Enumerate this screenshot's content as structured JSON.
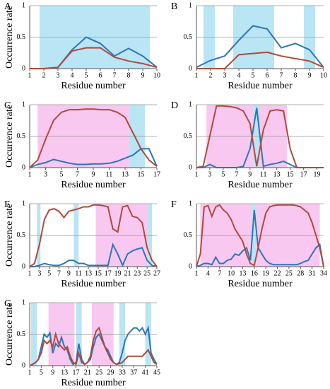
{
  "chart_data": [
    {
      "type": "line",
      "panel": "A",
      "ylabel": "Occurrence rate",
      "xlabel": "Residue number",
      "x": [
        1,
        2,
        3,
        4,
        5,
        6,
        7,
        8,
        9,
        10
      ],
      "xlim": [
        1,
        10
      ],
      "xticks": [
        1,
        2,
        3,
        4,
        5,
        6,
        7,
        8,
        9,
        10
      ],
      "ylim": [
        0,
        1
      ],
      "yticks": [
        0,
        0.5,
        1
      ],
      "grid": true,
      "regions": [
        {
          "from": 1.7,
          "to": 9.5,
          "color": "#b9e5f5"
        }
      ],
      "series": [
        {
          "color": "#2e75b6",
          "values": [
            0,
            0,
            0.02,
            0.3,
            0.5,
            0.4,
            0.2,
            0.32,
            0.2,
            0.02
          ]
        },
        {
          "color": "#b0493a",
          "values": [
            0,
            0,
            0.02,
            0.28,
            0.33,
            0.33,
            0.18,
            0.12,
            0.08,
            0.02
          ]
        }
      ]
    },
    {
      "type": "line",
      "panel": "B",
      "xlabel": "Residue number",
      "x": [
        1,
        2,
        3,
        4,
        5,
        6,
        7,
        8,
        9,
        10
      ],
      "xlim": [
        1,
        10
      ],
      "xticks": [
        1,
        2,
        3,
        4,
        5,
        6,
        7,
        8,
        9,
        10
      ],
      "ylim": [
        0,
        1
      ],
      "yticks": [
        0,
        0.5,
        1
      ],
      "grid": true,
      "regions": [
        {
          "from": 1.5,
          "to": 2.3,
          "color": "#b9e5f5"
        },
        {
          "from": 3.6,
          "to": 6.5,
          "color": "#b9e5f5"
        },
        {
          "from": 8.6,
          "to": 9.4,
          "color": "#b9e5f5"
        }
      ],
      "series": [
        {
          "color": "#2e75b6",
          "values": [
            0.02,
            0.13,
            0.2,
            0.45,
            0.68,
            0.63,
            0.33,
            0.4,
            0.3,
            0.02
          ]
        },
        {
          "color": "#b0493a",
          "values": [
            0,
            0,
            0,
            0.22,
            0.24,
            0.26,
            0.2,
            0.16,
            0.12,
            0.02
          ]
        }
      ]
    },
    {
      "type": "line",
      "panel": "C",
      "ylabel": "Occurrence rate",
      "xlabel": "Residue number",
      "x": [
        1,
        2,
        3,
        4,
        5,
        6,
        7,
        8,
        9,
        10,
        11,
        12,
        13,
        14,
        15,
        16,
        17
      ],
      "xlim": [
        1,
        17
      ],
      "xticks": [
        1,
        3,
        5,
        7,
        9,
        11,
        13,
        15,
        17
      ],
      "ylim": [
        0,
        1
      ],
      "yticks": [
        0,
        0.5,
        1
      ],
      "grid": true,
      "regions": [
        {
          "from": 2,
          "to": 13.5,
          "color": "#f8c8f1"
        },
        {
          "from": 13.5,
          "to": 15.5,
          "color": "#b9e5f5"
        }
      ],
      "series": [
        {
          "color": "#2e75b6",
          "values": [
            0,
            0.05,
            0.08,
            0.13,
            0.1,
            0.07,
            0.05,
            0.05,
            0.06,
            0.06,
            0.07,
            0.1,
            0.15,
            0.2,
            0.3,
            0.3,
            0.02
          ]
        },
        {
          "color": "#b0493a",
          "values": [
            0,
            0.12,
            0.45,
            0.75,
            0.88,
            0.92,
            0.92,
            0.93,
            0.93,
            0.92,
            0.92,
            0.88,
            0.8,
            0.55,
            0.3,
            0.12,
            0.02
          ]
        }
      ]
    },
    {
      "type": "line",
      "panel": "D",
      "xlabel": "Residue number",
      "x": [
        1,
        2,
        3,
        4,
        5,
        6,
        7,
        8,
        9,
        10,
        11,
        12,
        13,
        14,
        15,
        16,
        17,
        18,
        19,
        20
      ],
      "xlim": [
        1,
        20
      ],
      "xticks": [
        1,
        3,
        5,
        7,
        9,
        11,
        13,
        15,
        17,
        19
      ],
      "ylim": [
        0,
        1
      ],
      "yticks": [
        0,
        0.5,
        1
      ],
      "grid": true,
      "regions": [
        {
          "from": 2.5,
          "to": 9.5,
          "color": "#f8c8f1"
        },
        {
          "from": 9.5,
          "to": 10.5,
          "color": "#b9e5f5"
        },
        {
          "from": 10.5,
          "to": 14.5,
          "color": "#f8c8f1"
        }
      ],
      "series": [
        {
          "color": "#2e75b6",
          "values": [
            0,
            0,
            0.05,
            0,
            0,
            0,
            0,
            0.02,
            0.3,
            0.95,
            0.02,
            0.05,
            0.07,
            0.1,
            0.05,
            0,
            0,
            0,
            0,
            0
          ]
        },
        {
          "color": "#b0493a",
          "values": [
            0,
            0.02,
            0.5,
            0.98,
            0.98,
            0.97,
            0.95,
            0.9,
            0.7,
            0.02,
            0.6,
            0.9,
            0.92,
            0.9,
            0.3,
            0,
            0,
            0,
            0,
            0
          ]
        }
      ]
    },
    {
      "type": "line",
      "panel": "E",
      "ylabel": "Occurrence rate",
      "xlabel": "Residue number",
      "x": [
        1,
        2,
        3,
        4,
        5,
        6,
        7,
        8,
        9,
        10,
        11,
        12,
        13,
        14,
        15,
        16,
        17,
        18,
        19,
        20,
        21,
        22,
        23,
        24,
        25,
        26,
        27
      ],
      "xlim": [
        1,
        27
      ],
      "xticks": [
        1,
        3,
        5,
        7,
        9,
        11,
        13,
        15,
        17,
        19,
        21,
        23,
        25,
        27
      ],
      "ylim": [
        0,
        1
      ],
      "yticks": [
        0,
        0.5,
        1
      ],
      "grid": true,
      "regions": [
        {
          "from": 2.5,
          "to": 3.2,
          "color": "#b9e5f5"
        },
        {
          "from": 10,
          "to": 11,
          "color": "#b9e5f5"
        },
        {
          "from": 14.5,
          "to": 25,
          "color": "#f8c8f1"
        },
        {
          "from": 25,
          "to": 26,
          "color": "#b9e5f5"
        }
      ],
      "series": [
        {
          "color": "#2e75b6",
          "values": [
            0,
            0,
            0.02,
            0.05,
            0.03,
            0.02,
            0.02,
            0.05,
            0.1,
            0.1,
            0.05,
            0.05,
            0.02,
            0.02,
            0.02,
            0.02,
            0.02,
            0.35,
            0.2,
            0.02,
            0.2,
            0.25,
            0.28,
            0.3,
            0.1,
            0.02,
            0
          ]
        },
        {
          "color": "#b0493a",
          "values": [
            0,
            0.05,
            0.35,
            0.75,
            0.9,
            0.92,
            0.88,
            0.78,
            0.88,
            0.9,
            0.92,
            0.95,
            0.95,
            0.98,
            0.98,
            0.97,
            0.95,
            0.6,
            0.55,
            0.95,
            0.97,
            0.8,
            0.78,
            0.7,
            0.3,
            0.1,
            0
          ]
        }
      ]
    },
    {
      "type": "line",
      "panel": "F",
      "xlabel": "Residue number",
      "x": [
        1,
        2,
        3,
        4,
        5,
        6,
        7,
        8,
        9,
        10,
        11,
        12,
        13,
        14,
        15,
        16,
        17,
        18,
        19,
        20,
        21,
        22,
        23,
        24,
        25,
        26,
        27,
        28,
        29,
        30,
        31,
        32,
        33,
        34
      ],
      "xlim": [
        1,
        34
      ],
      "xticks": [
        1,
        4,
        7,
        10,
        13,
        16,
        19,
        22,
        25,
        28,
        31,
        34
      ],
      "ylim": [
        0,
        1
      ],
      "yticks": [
        0,
        0.5,
        1
      ],
      "grid": true,
      "regions": [
        {
          "from": 2,
          "to": 15.5,
          "color": "#f8c8f1"
        },
        {
          "from": 15.5,
          "to": 16.5,
          "color": "#b9e5f5"
        },
        {
          "from": 16.5,
          "to": 33,
          "color": "#f8c8f1"
        }
      ],
      "series": [
        {
          "color": "#2e75b6",
          "values": [
            0,
            0.02,
            0.05,
            0.05,
            0.03,
            0.15,
            0.05,
            0.05,
            0.1,
            0.12,
            0.2,
            0.18,
            0.25,
            0.3,
            0.1,
            0.9,
            0.3,
            0.2,
            0.1,
            0.05,
            0.03,
            0.03,
            0.03,
            0.03,
            0.03,
            0.03,
            0.03,
            0.05,
            0.08,
            0.1,
            0.2,
            0.3,
            0.35,
            0
          ]
        },
        {
          "color": "#b0493a",
          "values": [
            0,
            0.2,
            0.95,
            0.97,
            0.8,
            0.95,
            0.98,
            0.9,
            0.85,
            0.75,
            0.6,
            0.5,
            0.4,
            0.2,
            0.05,
            0.02,
            0.3,
            0.6,
            0.85,
            0.95,
            0.97,
            0.98,
            0.98,
            0.98,
            0.98,
            0.98,
            0.97,
            0.95,
            0.9,
            0.85,
            0.7,
            0.5,
            0.3,
            0
          ]
        }
      ]
    },
    {
      "type": "line",
      "panel": "G",
      "ylabel": "Occurrence rate",
      "xlabel": "Residue number",
      "x": [
        1,
        2,
        3,
        4,
        5,
        6,
        7,
        8,
        9,
        10,
        11,
        12,
        13,
        14,
        15,
        16,
        17,
        18,
        19,
        20,
        21,
        22,
        23,
        24,
        25,
        26,
        27,
        28,
        29,
        30,
        31,
        32,
        33,
        34,
        35,
        36,
        37,
        38,
        39,
        40,
        41,
        42,
        43,
        44,
        45
      ],
      "xlim": [
        1,
        45
      ],
      "xticks": [
        1,
        5,
        9,
        13,
        17,
        21,
        25,
        29,
        33,
        37,
        41,
        45
      ],
      "ylim": [
        0,
        1
      ],
      "yticks": [
        0,
        0.5,
        1
      ],
      "grid": true,
      "regions": [
        {
          "from": 1.5,
          "to": 3.5,
          "color": "#b9e5f5"
        },
        {
          "from": 7.5,
          "to": 16.5,
          "color": "#f8c8f1"
        },
        {
          "from": 17,
          "to": 19,
          "color": "#b9e5f5"
        },
        {
          "from": 22.5,
          "to": 30,
          "color": "#f8c8f1"
        },
        {
          "from": 32,
          "to": 34,
          "color": "#b9e5f5"
        },
        {
          "from": 41,
          "to": 43,
          "color": "#b9e5f5"
        }
      ],
      "series": [
        {
          "color": "#2e75b6",
          "values": [
            0,
            0.02,
            0.05,
            0.1,
            0.3,
            0.5,
            0.45,
            0.52,
            0.2,
            0.35,
            0.3,
            0.45,
            0.3,
            0.25,
            0.1,
            0.02,
            0.05,
            0.35,
            0.1,
            0.02,
            0.05,
            0.1,
            0.3,
            0.45,
            0.5,
            0.4,
            0.3,
            0.25,
            0.15,
            0.05,
            0.02,
            0.05,
            0.2,
            0.4,
            0.5,
            0.55,
            0.6,
            0.6,
            0.55,
            0.6,
            0.5,
            0.6,
            0.2,
            0.1,
            0.02
          ]
        },
        {
          "color": "#b0493a",
          "values": [
            0,
            0.02,
            0.05,
            0.1,
            0.2,
            0.4,
            0.35,
            0.4,
            0.3,
            0.5,
            0.35,
            0.3,
            0.25,
            0.3,
            0.15,
            0.05,
            0.02,
            0.2,
            0.05,
            0.02,
            0.05,
            0.15,
            0.4,
            0.55,
            0.6,
            0.45,
            0.3,
            0.2,
            0.1,
            0.05,
            0.02,
            0.03,
            0.05,
            0.1,
            0.15,
            0.15,
            0.15,
            0.15,
            0.15,
            0.15,
            0.2,
            0.25,
            0.15,
            0.05,
            0.02
          ]
        }
      ]
    }
  ]
}
